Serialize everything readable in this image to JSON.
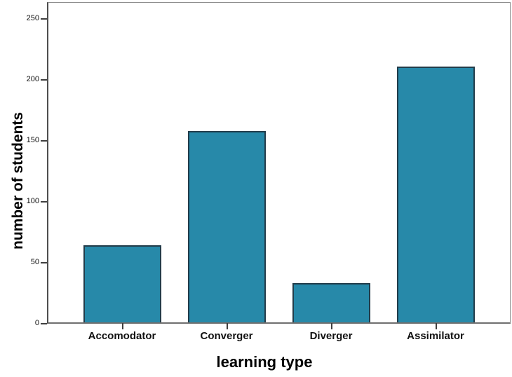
{
  "chart_data": {
    "type": "bar",
    "title": "",
    "categories": [
      "Accomodator",
      "Converger",
      "Diverger",
      "Assimilator"
    ],
    "values": [
      63,
      157,
      32,
      210
    ],
    "xlabel": "learning type",
    "ylabel": "number of students",
    "yticks": [
      0,
      50,
      100,
      150,
      200,
      250
    ],
    "ylim": [
      0,
      264
    ],
    "grid": false,
    "legend": "none",
    "bar_fill": "#2789A9",
    "bar_stroke": "#223C4A",
    "frame_color": "#8E8E8E",
    "axis_color": "#4D4D4D",
    "tick_color": "#3F3F3F",
    "text_color": "#111111",
    "background": "#FFFFFF"
  }
}
